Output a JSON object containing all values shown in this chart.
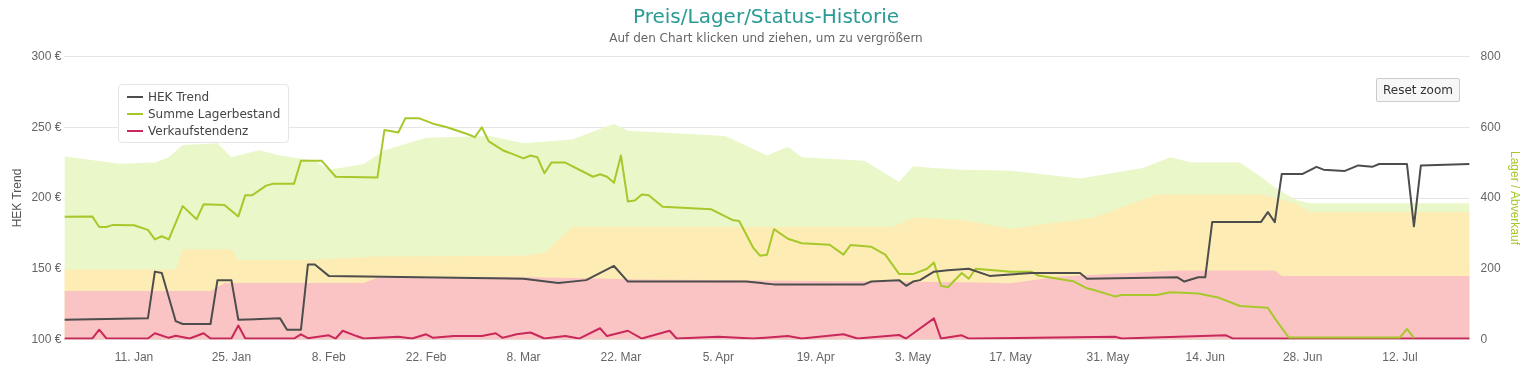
{
  "chart_data": {
    "type": "line",
    "title": "Preis/Lager/Status-Historie",
    "subtitle": "Auf den Chart klicken und ziehen, um zu vergrößern",
    "ylabel": "HEK Trend",
    "y2label": "Lager / Abverkauf",
    "annotations": [
      "Reset zoom"
    ],
    "xlim": [
      "--01-01",
      "--07-22"
    ],
    "xticks": [
      {
        "value": "--01-11",
        "label": "11. Jan"
      },
      {
        "value": "--01-25",
        "label": "25. Jan"
      },
      {
        "value": "--02-08",
        "label": "8. Feb"
      },
      {
        "value": "--02-22",
        "label": "22. Feb"
      },
      {
        "value": "--03-08",
        "label": "8. Mar"
      },
      {
        "value": "--03-22",
        "label": "22. Mar"
      },
      {
        "value": "--04-05",
        "label": "5. Apr"
      },
      {
        "value": "--04-19",
        "label": "19. Apr"
      },
      {
        "value": "--05-03",
        "label": "3. May"
      },
      {
        "value": "--05-17",
        "label": "17. May"
      },
      {
        "value": "--05-31",
        "label": "31. May"
      },
      {
        "value": "--06-14",
        "label": "14. Jun"
      },
      {
        "value": "--06-28",
        "label": "28. Jun"
      },
      {
        "value": "--07-12",
        "label": "12. Jul"
      }
    ],
    "ylim": [
      100,
      300
    ],
    "yticks": [
      {
        "value": 100,
        "label": "100 €"
      },
      {
        "value": 150,
        "label": "150 €"
      },
      {
        "value": 200,
        "label": "200 €"
      },
      {
        "value": 250,
        "label": "250 €"
      },
      {
        "value": 300,
        "label": "300 €"
      }
    ],
    "y2lim": [
      0,
      800
    ],
    "y2ticks": [
      0,
      200,
      400,
      600,
      800
    ],
    "grid": "y",
    "legend": "top left",
    "marker": "none",
    "line_style": "solid",
    "series": [
      {
        "name": "HEK Trend",
        "type": "line",
        "color": "#4d4d4d",
        "x": [
          "--01-01",
          "--01-13",
          "--01-14",
          "--01-15",
          "--01-17",
          "--01-18",
          "--01-22",
          "--01-23",
          "--01-25",
          "--01-26",
          "--02-01",
          "--02-02",
          "--02-04",
          "--02-05",
          "--02-06",
          "--02-08",
          "--03-08",
          "--03-13",
          "--03-17",
          "--03-21",
          "--03-23",
          "--04-09",
          "--04-13",
          "--04-26",
          "--04-27",
          "--05-01",
          "--05-02",
          "--05-03",
          "--05-04",
          "--05-06",
          "--05-08",
          "--05-11",
          "--05-14",
          "--05-17",
          "--05-20",
          "--05-27",
          "--05-28",
          "--06-10",
          "--06-11",
          "--06-13",
          "--06-14",
          "--06-15",
          "--06-22",
          "--06-23",
          "--06-24",
          "--06-25",
          "--06-28",
          "--06-30",
          "--07-01",
          "--07-04",
          "--07-06",
          "--07-08",
          "--07-09",
          "--07-13",
          "--07-14",
          "--07-15",
          "--07-22"
        ],
        "values": [
          114,
          115,
          148,
          147,
          113,
          111,
          111,
          142,
          142,
          114,
          115,
          107,
          107,
          153,
          153,
          145,
          143,
          140,
          142,
          152,
          141,
          141,
          139,
          139,
          141,
          142,
          138,
          141,
          142,
          148,
          149,
          150,
          145,
          146,
          147,
          147,
          143,
          144,
          141,
          144,
          144,
          183,
          183,
          190,
          183,
          217,
          217,
          222,
          220,
          219,
          223,
          222,
          224,
          224,
          180,
          223,
          224
        ]
      },
      {
        "name": "Summe Lagerbestand",
        "type": "line",
        "axis": "y2",
        "color": "#a6c82a",
        "x": [
          "--01-01",
          "--01-05",
          "--01-06",
          "--01-07",
          "--01-08",
          "--01-11",
          "--01-13",
          "--01-14",
          "--01-15",
          "--01-16",
          "--01-18",
          "--01-20",
          "--01-21",
          "--01-24",
          "--01-26",
          "--01-27",
          "--01-28",
          "--01-30",
          "--01-31",
          "--02-03",
          "--02-04",
          "--02-07",
          "--02-09",
          "--02-15",
          "--02-16",
          "--02-18",
          "--02-19",
          "--02-21",
          "--02-23",
          "--02-25",
          "--02-28",
          "--03-01",
          "--03-02",
          "--03-03",
          "--03-05",
          "--03-08",
          "--03-09",
          "--03-10",
          "--03-11",
          "--03-12",
          "--03-14",
          "--03-18",
          "--03-19",
          "--03-20",
          "--03-21",
          "--03-22",
          "--03-23",
          "--03-24",
          "--03-25",
          "--03-26",
          "--03-28",
          "--04-04",
          "--04-07",
          "--04-08",
          "--04-10",
          "--04-11",
          "--04-12",
          "--04-13",
          "--04-15",
          "--04-17",
          "--04-21",
          "--04-23",
          "--04-24",
          "--04-27",
          "--04-29",
          "--05-01",
          "--05-03",
          "--05-05",
          "--05-06",
          "--05-07",
          "--05-08",
          "--05-10",
          "--05-11",
          "--05-12",
          "--05-15",
          "--05-17",
          "--05-20",
          "--05-21",
          "--05-26",
          "--05-28",
          "--05-29",
          "--06-01",
          "--06-02",
          "--06-07",
          "--06-09",
          "--06-13",
          "--06-16",
          "--06-19",
          "--06-23",
          "--06-24",
          "--06-26",
          "--07-12",
          "--07-13",
          "--07-14"
        ],
        "values": [
          347,
          348,
          318,
          318,
          324,
          323,
          310,
          283,
          292,
          283,
          377,
          340,
          382,
          380,
          348,
          408,
          408,
          435,
          440,
          440,
          505,
          505,
          460,
          458,
          592,
          585,
          625,
          625,
          610,
          600,
          580,
          572,
          600,
          560,
          535,
          512,
          520,
          515,
          470,
          500,
          500,
          460,
          467,
          460,
          443,
          520,
          390,
          393,
          410,
          408,
          375,
          368,
          338,
          335,
          260,
          237,
          240,
          312,
          285,
          272,
          268,
          240,
          267,
          262,
          240,
          185,
          185,
          200,
          218,
          152,
          148,
          188,
          172,
          200,
          195,
          192,
          192,
          181,
          165,
          145,
          140,
          122,
          126,
          126,
          134,
          130,
          118,
          95,
          90,
          60,
          6,
          6,
          30,
          5
        ]
      },
      {
        "name": "Verkaufstendenz",
        "type": "line",
        "axis": "y2",
        "color": "#c8285a",
        "x": [
          "--01-01",
          "--01-05",
          "--01-06",
          "--01-07",
          "--01-13",
          "--01-14",
          "--01-16",
          "--01-17",
          "--01-19",
          "--01-21",
          "--01-22",
          "--01-25",
          "--01-26",
          "--01-27",
          "--02-03",
          "--02-04",
          "--02-05",
          "--02-08",
          "--02-09",
          "--02-10",
          "--02-12",
          "--02-13",
          "--02-18",
          "--02-20",
          "--02-22",
          "--02-23",
          "--02-26",
          "--03-02",
          "--03-04",
          "--03-05",
          "--03-07",
          "--03-09",
          "--03-11",
          "--03-14",
          "--03-16",
          "--03-19",
          "--03-20",
          "--03-23",
          "--03-25",
          "--03-29",
          "--03-30",
          "--04-05",
          "--04-10",
          "--04-15",
          "--04-17",
          "--04-23",
          "--04-25",
          "--05-01",
          "--05-02",
          "--05-06",
          "--05-07",
          "--05-10",
          "--05-11",
          "--06-01",
          "--06-02",
          "--06-17",
          "--06-18",
          "--07-22"
        ],
        "values": [
          3,
          3,
          28,
          4,
          3,
          18,
          5,
          11,
          3,
          18,
          3,
          3,
          40,
          3,
          3,
          15,
          4,
          12,
          3,
          25,
          10,
          3,
          8,
          3,
          15,
          5,
          10,
          10,
          18,
          5,
          15,
          20,
          3,
          10,
          3,
          32,
          10,
          25,
          3,
          25,
          3,
          8,
          3,
          10,
          3,
          15,
          3,
          13,
          3,
          60,
          3,
          12,
          3,
          8,
          3,
          12,
          3,
          3
        ]
      },
      {
        "type": "area",
        "axis": "y2",
        "color": "#fbc4c4",
        "x": [
          "--01-01",
          "--01-22",
          "--01-24",
          "--02-13",
          "--02-15",
          "--03-08",
          "--03-25",
          "--05-10",
          "--05-17",
          "--05-24",
          "--06-10",
          "--06-24",
          "--06-25",
          "--07-22"
        ],
        "values": [
          137,
          137,
          160,
          160,
          175,
          177,
          170,
          162,
          159,
          178,
          195,
          195,
          180,
          180
        ]
      },
      {
        "type": "area",
        "axis": "y2",
        "color": "#fdecb4",
        "x": [
          "--01-01",
          "--01-17",
          "--01-18",
          "--01-25",
          "--01-26",
          "--02-05",
          "--02-15",
          "--03-08",
          "--03-11",
          "--03-15",
          "--04-30",
          "--05-03",
          "--05-10",
          "--05-17",
          "--05-29",
          "--06-07",
          "--06-22",
          "--06-27",
          "--06-29",
          "--07-22"
        ],
        "values": [
          198,
          198,
          255,
          255,
          225,
          225,
          235,
          237,
          245,
          318,
          318,
          345,
          338,
          313,
          345,
          410,
          410,
          385,
          360,
          360
        ]
      },
      {
        "type": "area",
        "axis": "y2",
        "color": "#e9f7c9",
        "x": [
          "--01-01",
          "--01-09",
          "--01-14",
          "--01-16",
          "--01-18",
          "--01-23",
          "--01-25",
          "--01-29",
          "--02-01",
          "--02-06",
          "--02-08",
          "--02-13",
          "--02-16",
          "--02-22",
          "--03-03",
          "--03-08",
          "--03-15",
          "--03-21",
          "--03-23",
          "--04-06",
          "--04-12",
          "--04-15",
          "--04-17",
          "--04-26",
          "--05-01",
          "--05-03",
          "--05-06",
          "--05-10",
          "--05-17",
          "--05-27",
          "--06-05",
          "--06-09",
          "--06-12",
          "--06-19",
          "--06-22",
          "--06-24",
          "--06-27",
          "--06-29",
          "--07-22"
        ],
        "values": [
          517,
          497,
          500,
          515,
          550,
          555,
          515,
          535,
          520,
          505,
          480,
          495,
          535,
          570,
          575,
          555,
          565,
          610,
          590,
          575,
          520,
          545,
          515,
          505,
          445,
          490,
          485,
          480,
          477,
          455,
          485,
          515,
          500,
          500,
          460,
          430,
          395,
          385,
          385
        ]
      }
    ]
  }
}
